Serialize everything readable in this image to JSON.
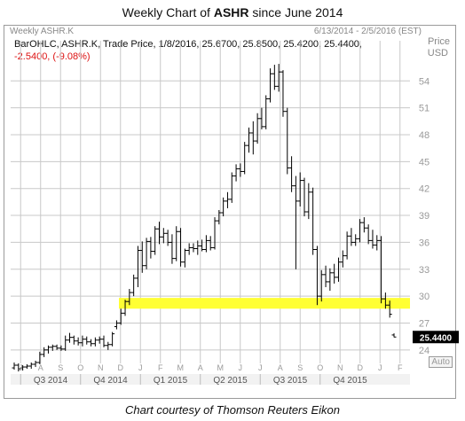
{
  "title": {
    "prefix": "Weekly Chart of",
    "symbol": "ASHR",
    "suffix": "since June 2014"
  },
  "panel": {
    "symbol": "Weekly ASHR.K",
    "date_range": "6/13/2014 - 2/5/2016 (EST)",
    "price_label": "Price",
    "currency": "USD",
    "auto_label": "Auto"
  },
  "info": {
    "line1": "BarOHLC, ASHR.K, Trade Price, 1/8/2016, 25.6700, 25.8500, 25.4200, 25.4400,",
    "change": "-2.5400, (-9.08%)"
  },
  "last_price_tag": "25.4400",
  "caption": "Chart courtesy of Thomson Reuters Eikon",
  "colors": {
    "bars": "#000000",
    "grid": "#c8c8c8",
    "support_band": "#ffff33",
    "last_tag_bg": "#000000",
    "change_neg": "#dd1111"
  },
  "chart_data": {
    "type": "ohlc",
    "ylim": [
      22.5,
      56.5
    ],
    "y_ticks": [
      24,
      27,
      30,
      33,
      36,
      39,
      42,
      45,
      48,
      51,
      54
    ],
    "month_labels": [
      "J",
      "A",
      "S",
      "O",
      "N",
      "D",
      "J",
      "F",
      "M",
      "A",
      "M",
      "J",
      "J",
      "A",
      "S",
      "O",
      "N",
      "D",
      "J",
      "F"
    ],
    "quarter_labels": [
      "Q3 2014",
      "Q4 2014",
      "Q1 2015",
      "Q2 2015",
      "Q3 2015",
      "Q4 2015"
    ],
    "support_band": [
      28.6,
      29.8
    ],
    "last_price": 25.44,
    "bars": [
      {
        "o": 22.0,
        "h": 22.6,
        "l": 21.8,
        "c": 22.3
      },
      {
        "o": 22.3,
        "h": 22.5,
        "l": 21.6,
        "c": 21.9
      },
      {
        "o": 22.0,
        "h": 22.3,
        "l": 21.7,
        "c": 22.1
      },
      {
        "o": 22.1,
        "h": 22.4,
        "l": 21.9,
        "c": 22.2
      },
      {
        "o": 22.2,
        "h": 22.6,
        "l": 21.9,
        "c": 22.4
      },
      {
        "o": 22.4,
        "h": 22.8,
        "l": 22.1,
        "c": 22.6
      },
      {
        "o": 22.6,
        "h": 23.8,
        "l": 22.4,
        "c": 23.5
      },
      {
        "o": 23.5,
        "h": 24.3,
        "l": 23.2,
        "c": 24.0
      },
      {
        "o": 24.0,
        "h": 24.5,
        "l": 23.6,
        "c": 24.3
      },
      {
        "o": 24.3,
        "h": 24.6,
        "l": 23.9,
        "c": 24.4
      },
      {
        "o": 24.4,
        "h": 24.6,
        "l": 24.0,
        "c": 24.2
      },
      {
        "o": 24.2,
        "h": 24.5,
        "l": 23.9,
        "c": 24.1
      },
      {
        "o": 24.1,
        "h": 25.6,
        "l": 23.9,
        "c": 25.1
      },
      {
        "o": 25.1,
        "h": 25.9,
        "l": 24.8,
        "c": 25.4
      },
      {
        "o": 25.4,
        "h": 25.6,
        "l": 24.6,
        "c": 25.0
      },
      {
        "o": 25.0,
        "h": 25.4,
        "l": 24.5,
        "c": 24.8
      },
      {
        "o": 24.8,
        "h": 25.6,
        "l": 24.4,
        "c": 25.2
      },
      {
        "o": 25.2,
        "h": 25.5,
        "l": 24.6,
        "c": 24.9
      },
      {
        "o": 24.9,
        "h": 25.2,
        "l": 24.4,
        "c": 24.7
      },
      {
        "o": 24.7,
        "h": 25.4,
        "l": 24.4,
        "c": 25.1
      },
      {
        "o": 25.1,
        "h": 25.5,
        "l": 24.7,
        "c": 25.2
      },
      {
        "o": 25.2,
        "h": 25.6,
        "l": 24.3,
        "c": 24.5
      },
      {
        "o": 24.5,
        "h": 24.9,
        "l": 24.0,
        "c": 24.6
      },
      {
        "o": 24.6,
        "h": 26.0,
        "l": 24.4,
        "c": 25.8
      },
      {
        "o": 26.6,
        "h": 27.3,
        "l": 26.3,
        "c": 27.0
      },
      {
        "o": 27.0,
        "h": 28.6,
        "l": 26.8,
        "c": 28.1
      },
      {
        "o": 28.1,
        "h": 29.6,
        "l": 27.8,
        "c": 29.4
      },
      {
        "o": 29.4,
        "h": 30.8,
        "l": 29.0,
        "c": 30.4
      },
      {
        "o": 30.4,
        "h": 32.4,
        "l": 30.0,
        "c": 32.0
      },
      {
        "o": 32.0,
        "h": 35.6,
        "l": 31.0,
        "c": 35.1
      },
      {
        "o": 35.1,
        "h": 36.1,
        "l": 32.6,
        "c": 33.4
      },
      {
        "o": 33.4,
        "h": 36.5,
        "l": 33.0,
        "c": 36.1
      },
      {
        "o": 36.1,
        "h": 36.6,
        "l": 34.2,
        "c": 35.0
      },
      {
        "o": 35.0,
        "h": 37.8,
        "l": 34.6,
        "c": 37.5
      },
      {
        "o": 37.5,
        "h": 38.3,
        "l": 35.8,
        "c": 36.6
      },
      {
        "o": 36.6,
        "h": 37.6,
        "l": 35.9,
        "c": 37.0
      },
      {
        "o": 37.0,
        "h": 37.4,
        "l": 35.6,
        "c": 36.0
      },
      {
        "o": 36.0,
        "h": 36.9,
        "l": 33.6,
        "c": 34.2
      },
      {
        "o": 34.2,
        "h": 37.8,
        "l": 33.9,
        "c": 37.2
      },
      {
        "o": 37.2,
        "h": 37.6,
        "l": 33.3,
        "c": 33.8
      },
      {
        "o": 33.8,
        "h": 35.3,
        "l": 33.2,
        "c": 35.1
      },
      {
        "o": 35.1,
        "h": 35.9,
        "l": 34.6,
        "c": 35.4
      },
      {
        "o": 35.4,
        "h": 35.9,
        "l": 34.9,
        "c": 35.3
      },
      {
        "o": 35.3,
        "h": 36.2,
        "l": 34.6,
        "c": 35.6
      },
      {
        "o": 35.6,
        "h": 36.3,
        "l": 35.0,
        "c": 35.2
      },
      {
        "o": 35.2,
        "h": 36.8,
        "l": 34.9,
        "c": 36.2
      },
      {
        "o": 36.2,
        "h": 36.7,
        "l": 35.1,
        "c": 35.4
      },
      {
        "o": 35.4,
        "h": 38.8,
        "l": 35.2,
        "c": 38.4
      },
      {
        "o": 38.4,
        "h": 39.6,
        "l": 38.0,
        "c": 39.3
      },
      {
        "o": 39.3,
        "h": 41.0,
        "l": 38.9,
        "c": 40.6
      },
      {
        "o": 40.6,
        "h": 41.6,
        "l": 39.8,
        "c": 40.8
      },
      {
        "o": 40.8,
        "h": 43.8,
        "l": 40.4,
        "c": 43.4
      },
      {
        "o": 43.4,
        "h": 44.7,
        "l": 42.8,
        "c": 44.2
      },
      {
        "o": 44.2,
        "h": 44.8,
        "l": 43.3,
        "c": 43.9
      },
      {
        "o": 43.9,
        "h": 47.2,
        "l": 43.6,
        "c": 46.8
      },
      {
        "o": 46.8,
        "h": 48.8,
        "l": 46.0,
        "c": 48.2
      },
      {
        "o": 48.2,
        "h": 49.5,
        "l": 45.8,
        "c": 47.3
      },
      {
        "o": 47.3,
        "h": 50.4,
        "l": 47.0,
        "c": 49.8
      },
      {
        "o": 49.8,
        "h": 51.0,
        "l": 48.6,
        "c": 48.9
      },
      {
        "o": 48.9,
        "h": 52.4,
        "l": 48.6,
        "c": 52.0
      },
      {
        "o": 52.0,
        "h": 55.4,
        "l": 51.6,
        "c": 54.8
      },
      {
        "o": 54.8,
        "h": 55.8,
        "l": 53.0,
        "c": 53.4
      },
      {
        "o": 53.4,
        "h": 55.9,
        "l": 52.8,
        "c": 55.0
      },
      {
        "o": 55.0,
        "h": 55.2,
        "l": 50.0,
        "c": 50.6
      },
      {
        "o": 50.6,
        "h": 51.0,
        "l": 43.6,
        "c": 44.3
      },
      {
        "o": 44.3,
        "h": 45.6,
        "l": 41.6,
        "c": 42.3
      },
      {
        "o": 42.3,
        "h": 43.4,
        "l": 33.0,
        "c": 40.6
      },
      {
        "o": 40.6,
        "h": 43.8,
        "l": 40.0,
        "c": 42.9
      },
      {
        "o": 42.9,
        "h": 43.2,
        "l": 38.9,
        "c": 39.4
      },
      {
        "o": 39.4,
        "h": 42.6,
        "l": 38.6,
        "c": 41.6
      },
      {
        "o": 41.6,
        "h": 42.1,
        "l": 34.6,
        "c": 35.2
      },
      {
        "o": 35.2,
        "h": 35.6,
        "l": 29.0,
        "c": 30.0
      },
      {
        "o": 30.0,
        "h": 32.9,
        "l": 29.4,
        "c": 32.4
      },
      {
        "o": 32.4,
        "h": 33.4,
        "l": 31.0,
        "c": 31.6
      },
      {
        "o": 31.6,
        "h": 33.1,
        "l": 30.6,
        "c": 32.6
      },
      {
        "o": 32.6,
        "h": 33.6,
        "l": 31.4,
        "c": 32.1
      },
      {
        "o": 32.1,
        "h": 34.3,
        "l": 31.6,
        "c": 33.8
      },
      {
        "o": 33.8,
        "h": 35.1,
        "l": 33.2,
        "c": 34.5
      },
      {
        "o": 34.5,
        "h": 37.2,
        "l": 34.1,
        "c": 36.7
      },
      {
        "o": 36.7,
        "h": 37.6,
        "l": 35.6,
        "c": 36.0
      },
      {
        "o": 36.0,
        "h": 36.9,
        "l": 35.6,
        "c": 36.4
      },
      {
        "o": 36.4,
        "h": 38.6,
        "l": 36.0,
        "c": 38.2
      },
      {
        "o": 38.2,
        "h": 38.8,
        "l": 37.1,
        "c": 37.6
      },
      {
        "o": 37.6,
        "h": 38.0,
        "l": 35.8,
        "c": 36.2
      },
      {
        "o": 36.2,
        "h": 37.4,
        "l": 35.3,
        "c": 35.7
      },
      {
        "o": 35.7,
        "h": 36.8,
        "l": 35.1,
        "c": 36.2
      },
      {
        "o": 36.2,
        "h": 36.7,
        "l": 29.2,
        "c": 29.7
      },
      {
        "o": 29.7,
        "h": 30.4,
        "l": 28.6,
        "c": 29.0
      },
      {
        "o": 29.0,
        "h": 29.5,
        "l": 27.6,
        "c": 27.98
      },
      {
        "o": 25.67,
        "h": 25.85,
        "l": 25.42,
        "c": 25.44
      }
    ]
  }
}
